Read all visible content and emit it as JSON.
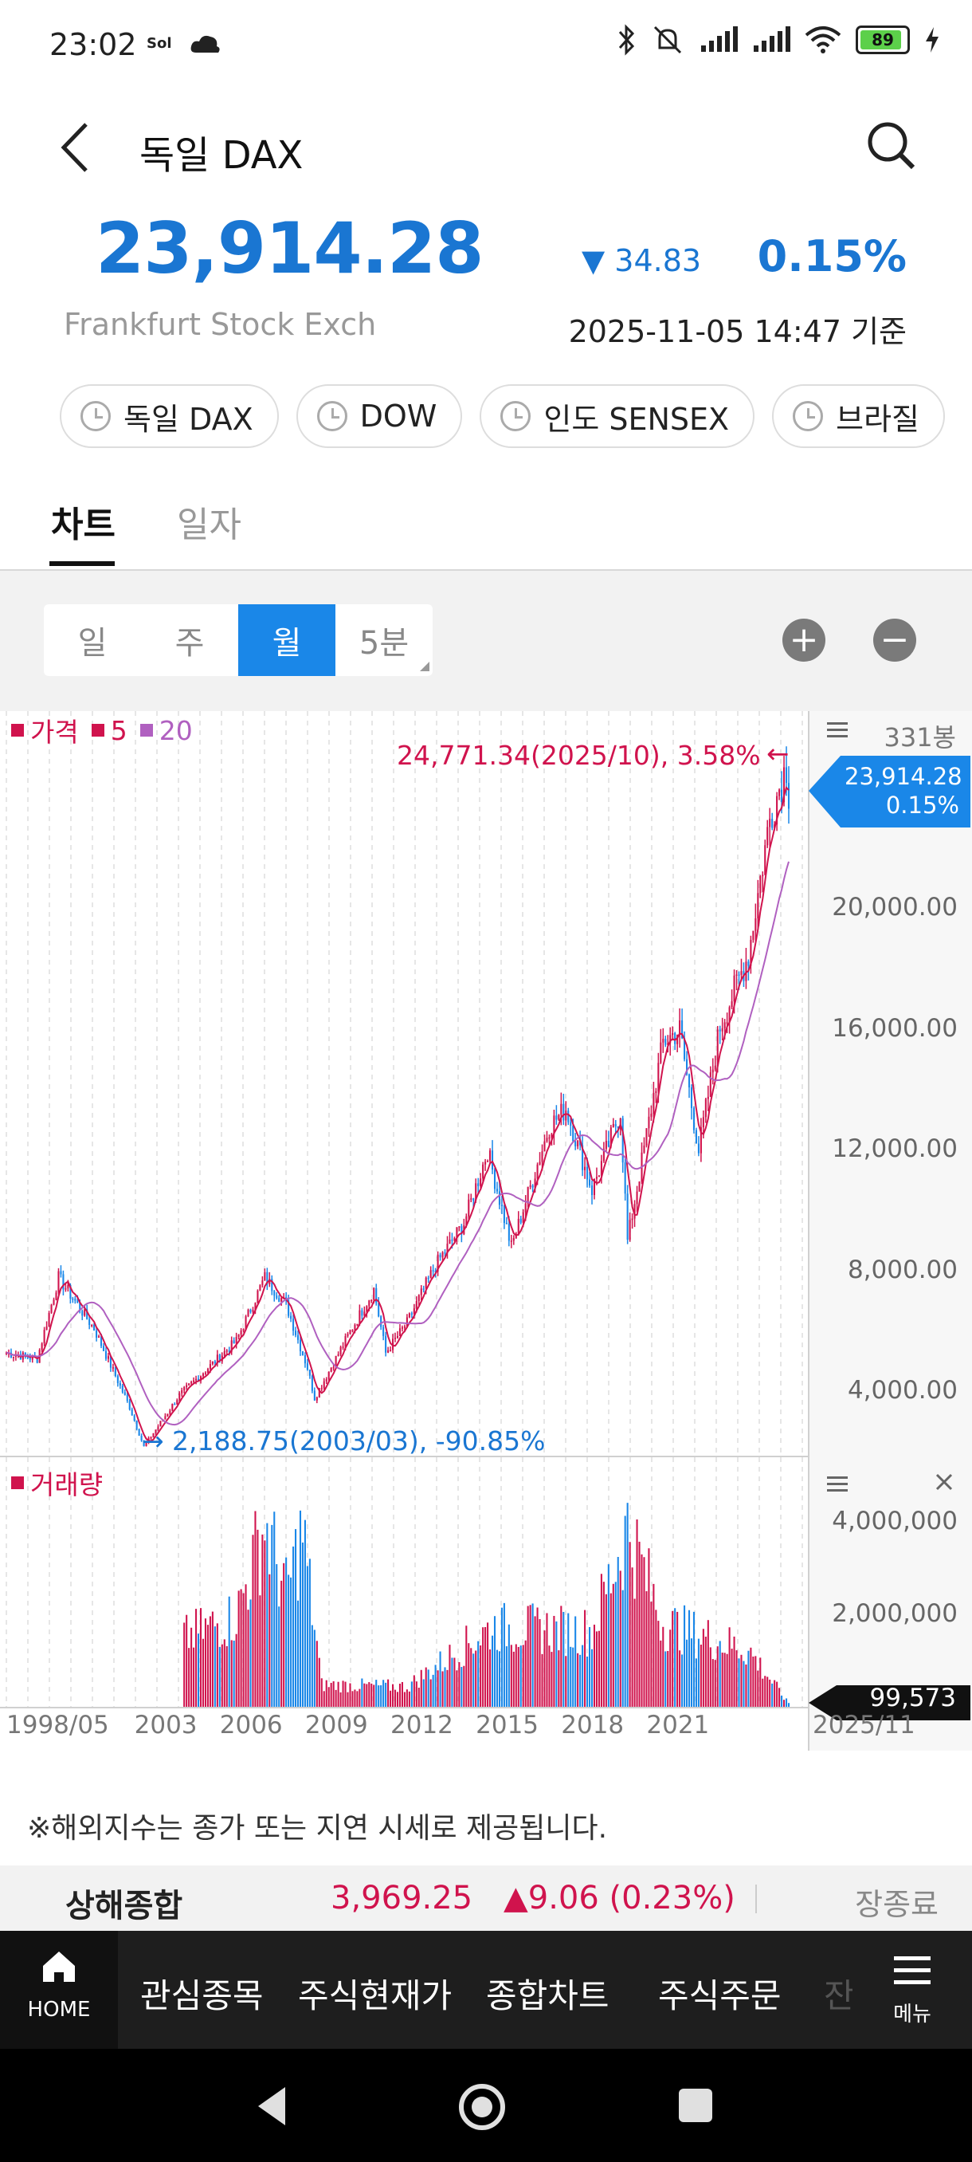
{
  "status_bar": {
    "time": "23:02",
    "battery": "89"
  },
  "header": {
    "title": "독일 DAX",
    "price": "23,914.28",
    "change": "▼ 34.83",
    "change_pct": "0.15%",
    "exchange": "Frankfurt Stock Exch",
    "as_of": "2025-11-05 14:47 기준"
  },
  "chips": [
    "독일 DAX",
    "DOW",
    "인도 SENSEX",
    "브라질"
  ],
  "tabs": {
    "chart": "차트",
    "daily": "일자"
  },
  "periods": [
    "일",
    "주",
    "월",
    "5분"
  ],
  "zoom": {
    "plus": "+",
    "minus": "−"
  },
  "price_panel": {
    "legend_price": "가격",
    "legend_ma5": "5",
    "legend_ma20": "20",
    "bars_count": "331봉",
    "max_annotation": "24,771.34(2025/10), 3.58%",
    "min_annotation": "2,188.75(2003/03), -90.85%",
    "current_price": "23,914.28",
    "current_pct": "0.15%",
    "y_ticks": [
      "20,000.00",
      "16,000.00",
      "12,000.00",
      "8,000.00",
      "4,000.00"
    ]
  },
  "volume_panel": {
    "legend": "거래량",
    "y_ticks": [
      "4,000,000",
      "2,000,000"
    ],
    "current_volume": "99,573"
  },
  "x_ticks": [
    "1998/05",
    "2003",
    "2006",
    "2009",
    "2012",
    "2015",
    "2018",
    "2021",
    "2025/11"
  ],
  "notice": "※해외지수는 종가 또는 지연 시세로 제공됩니다.",
  "ticker": {
    "name": "상해종합",
    "value": "3,969.25",
    "change": "▲9.06 (0.23%)",
    "status": "장종료"
  },
  "bottom_nav": {
    "home": "HOME",
    "items": [
      "관심종목",
      "주식현재가",
      "종합차트",
      "주식주문",
      "잔"
    ],
    "menu": "메뉴"
  },
  "colors": {
    "up": "#d0134d",
    "down": "#1a76d2",
    "ma20": "#b060c0",
    "accent": "#1a87e8"
  },
  "chart_data": {
    "type": "line",
    "title": "",
    "x": [
      "1998/05",
      "1999/06",
      "2000/03",
      "2001/06",
      "2002/09",
      "2003/03",
      "2004/06",
      "2005/06",
      "2006/06",
      "2007/06",
      "2008/03",
      "2008/12",
      "2009/03",
      "2010/06",
      "2011/04",
      "2011/09",
      "2012/06",
      "2013/06",
      "2014/06",
      "2015/04",
      "2016/02",
      "2017/06",
      "2018/01",
      "2018/12",
      "2019/12",
      "2020/03",
      "2021/06",
      "2022/01",
      "2022/09",
      "2023/06",
      "2024/06",
      "2025/03",
      "2025/10",
      "2025/11"
    ],
    "series": [
      {
        "values": [
          5300,
          5100,
          7800,
          6100,
          3500,
          2188.75,
          3900,
          4800,
          5700,
          7800,
          6900,
          4800,
          3800,
          6000,
          7400,
          5300,
          6300,
          8200,
          9600,
          12000,
          8800,
          12800,
          13400,
          10700,
          13300,
          9000,
          15600,
          16000,
          12000,
          16100,
          18500,
          23000,
          24771.34,
          23914.28
        ]
      }
    ],
    "ylim": [
      2000,
      25500
    ],
    "volume": {
      "x": [
        "2004/07",
        "2006/06",
        "2007/06",
        "2008/03",
        "2008/10",
        "2009/06",
        "2012/06",
        "2015/06",
        "2018/12",
        "2020/03",
        "2021/06",
        "2024/06",
        "2025/11"
      ],
      "values": [
        1800000,
        2400000,
        4800000,
        3000000,
        4600000,
        600000,
        550000,
        2100000,
        2000000,
        4700000,
        2200000,
        1500000,
        99573
      ],
      "ylim": [
        0,
        5000000
      ]
    },
    "grid": true
  }
}
